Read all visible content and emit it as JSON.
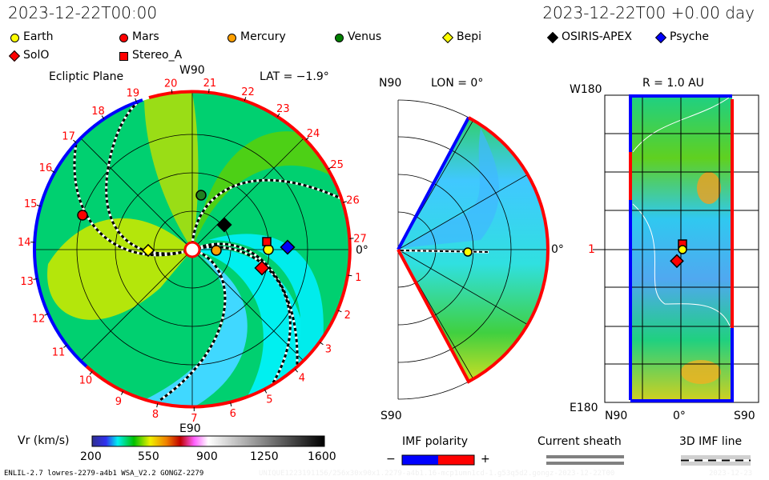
{
  "header": {
    "left_time": "2023-12-22T00:00",
    "right_time": "2023-12-22T00 +0.00 day"
  },
  "legend": [
    {
      "name": "Earth",
      "shape": "circle",
      "color": "#ffff00"
    },
    {
      "name": "Mars",
      "shape": "circle",
      "color": "#ff0000"
    },
    {
      "name": "Mercury",
      "shape": "circle",
      "color": "#ffa000"
    },
    {
      "name": "Venus",
      "shape": "circle",
      "color": "#008000"
    },
    {
      "name": "Bepi",
      "shape": "diamond",
      "color": "#ffff00"
    },
    {
      "name": "OSIRIS-APEX",
      "shape": "diamond",
      "color": "#000000"
    },
    {
      "name": "Psyche",
      "shape": "diamond",
      "color": "#0000ff"
    },
    {
      "name": "SolO",
      "shape": "diamond",
      "color": "#ff0000"
    },
    {
      "name": "Stereo_A",
      "shape": "square",
      "color": "#ff0000"
    }
  ],
  "ecliptic": {
    "title": "Ecliptic Plane",
    "top_label": "W90",
    "bottom_label": "E90",
    "lat_label": "LAT = −1.9°",
    "right_label": "0°",
    "day_labels": [
      "1",
      "2",
      "3",
      "4",
      "5",
      "6",
      "7",
      "8",
      "9",
      "10",
      "11",
      "12",
      "13",
      "14",
      "15",
      "16",
      "17",
      "18",
      "19",
      "20",
      "21",
      "22",
      "23",
      "24",
      "25",
      "26",
      "27"
    ]
  },
  "meridional": {
    "top_label": "N90",
    "lon_label": "LON = 0°",
    "bottom_label": "S90",
    "right_label": "0°"
  },
  "radial": {
    "title": "R = 1.0 AU",
    "top_label": "W180",
    "bottom_label": "E180",
    "mid_label": "1",
    "x_labels": [
      "N90",
      "0°",
      "S90"
    ]
  },
  "colorbar": {
    "label": "Vr (km/s)",
    "ticks": [
      "200",
      "550",
      "900",
      "1250",
      "1600"
    ],
    "range": [
      200,
      1600
    ]
  },
  "imf": {
    "title": "IMF polarity",
    "minus": "−",
    "plus": "+",
    "neg_color": "#0000ff",
    "pos_color": "#ff0000"
  },
  "sheath": {
    "title": "Current sheath"
  },
  "imfline": {
    "title": "3D IMF line"
  },
  "footer": {
    "left": "ENLIL-2.7 lowres-2279-a4b1 WSA_V2.2 GONGZ-2279",
    "faint": "UNIQUE1223191156/256x30x90x1.2279-a4b1.16-mcp1umn1cd-1.g53q5d2.gongz-2023-12-22T00",
    "faint_date": "2023-12-23"
  }
}
